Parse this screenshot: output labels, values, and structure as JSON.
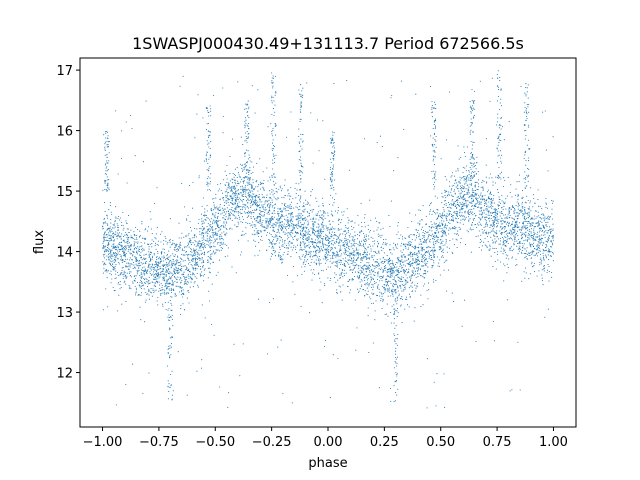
{
  "chart_data": {
    "type": "scatter",
    "title": "1SWASPJ000430.49+131113.7 Period 672566.5s",
    "xlabel": "phase",
    "ylabel": "flux",
    "xlim": [
      -1.1,
      1.1
    ],
    "ylim": [
      11.1,
      17.2
    ],
    "xticks": [
      -1.0,
      -0.75,
      -0.5,
      -0.25,
      0.0,
      0.25,
      0.5,
      0.75,
      1.0
    ],
    "xtick_labels": [
      "−1.00",
      "−0.75",
      "−0.50",
      "−0.25",
      "0.00",
      "0.25",
      "0.50",
      "0.75",
      "1.00"
    ],
    "yticks": [
      12,
      13,
      14,
      15,
      16,
      17
    ],
    "ytick_labels": [
      "12",
      "13",
      "14",
      "15",
      "16",
      "17"
    ],
    "grid": false,
    "marker_color": "#1f77b4",
    "series": [
      {
        "trend": {
          "x": [
            0.0,
            0.05,
            0.1,
            0.15,
            0.2,
            0.25,
            0.3,
            0.35,
            0.4,
            0.45,
            0.5,
            0.55,
            0.6,
            0.65,
            0.7,
            0.75,
            0.8,
            0.85,
            0.9,
            0.95,
            1.0
          ],
          "y": [
            14.2,
            14.05,
            13.95,
            13.85,
            13.75,
            13.7,
            13.7,
            13.75,
            13.9,
            14.1,
            14.3,
            14.7,
            14.9,
            14.9,
            14.6,
            14.5,
            14.4,
            14.4,
            14.3,
            14.2,
            14.2
          ]
        },
        "scatter_sd": 0.3,
        "spikes": [
          {
            "x": 0.3,
            "y_min": 11.5,
            "y_max": 13.5
          },
          {
            "x": 0.76,
            "y_min": 15.2,
            "y_max": 17.0
          },
          {
            "x": 0.88,
            "y_min": 15.0,
            "y_max": 16.8
          },
          {
            "x": 0.64,
            "y_min": 15.2,
            "y_max": 16.5
          },
          {
            "x": 0.02,
            "y_min": 15.0,
            "y_max": 16.0
          },
          {
            "x": 0.47,
            "y_min": 15.0,
            "y_max": 16.5
          }
        ]
      }
    ]
  }
}
